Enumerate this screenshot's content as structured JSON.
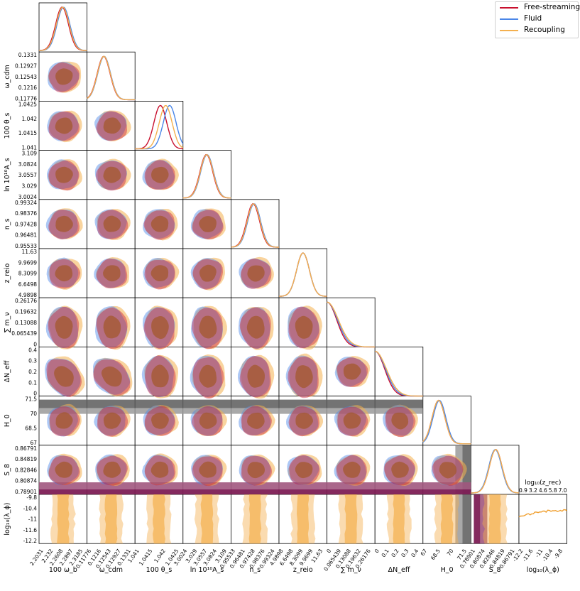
{
  "chart_data": {
    "type": "triangle",
    "legend": [
      {
        "label": "Free-streaming",
        "color": "#c8102e"
      },
      {
        "label": "Fluid",
        "color": "#4a86e8"
      },
      {
        "label": "Recoupling",
        "color": "#f4b04f"
      }
    ],
    "parameters": [
      {
        "id": "omega_b",
        "label": "100 ω_b",
        "ticks": [
          "2.2031",
          "2.232",
          "2.2608",
          "2.2897",
          "2.3185"
        ]
      },
      {
        "id": "omega_cdm",
        "label": "ω_cdm",
        "ticks": [
          "0.11776",
          "0.1216",
          "0.12543",
          "0.12927",
          "0.1331"
        ]
      },
      {
        "id": "theta_s",
        "label": "100 θ_s",
        "ticks": [
          "1.041",
          "1.0415",
          "1.042",
          "1.0425"
        ]
      },
      {
        "id": "ln_As",
        "label": "ln 10¹⁰A_s",
        "ticks": [
          "3.0024",
          "3.029",
          "3.0557",
          "3.0824",
          "3.109"
        ]
      },
      {
        "id": "n_s",
        "label": "n_s",
        "ticks": [
          "0.95533",
          "0.96481",
          "0.97428",
          "0.98376",
          "0.99324"
        ]
      },
      {
        "id": "z_reio",
        "label": "z_reio",
        "ticks": [
          "4.9898",
          "6.6498",
          "8.3099",
          "9.9699",
          "11.63"
        ]
      },
      {
        "id": "sum_mnu",
        "label": "∑ m_ν",
        "ticks": [
          "0",
          "0.065439",
          "0.13088",
          "0.19632",
          "0.26176"
        ]
      },
      {
        "id": "dNeff",
        "label": "ΔN_eff",
        "ticks": [
          "0",
          "0.1",
          "0.2",
          "0.3",
          "0.4"
        ]
      },
      {
        "id": "H0",
        "label": "H_0",
        "ticks": [
          "67",
          "68.5",
          "70",
          "71.5"
        ]
      },
      {
        "id": "S8",
        "label": "S_8",
        "ticks": [
          "0.78901",
          "0.80874",
          "0.82846",
          "0.84819",
          "0.86791"
        ]
      },
      {
        "id": "log10_lambda",
        "label": "log₁₀(λ_ϕ)",
        "ticks": [
          "-12.2",
          "-11.6",
          "-11",
          "-10.4",
          "-9.8"
        ]
      }
    ],
    "extra_axis": {
      "top_label": "log₁₀(z_rec)",
      "top_ticks": [
        "0.9",
        "3.2",
        "4.6",
        "5.8",
        "7.0"
      ],
      "bottom_ticks": [
        "-12.2",
        "-11.6",
        "-11",
        "-10.4",
        "-9.8"
      ],
      "bottom_label": "log₁₀(λ_ϕ)"
    },
    "marginal_peaks": [
      {
        "param": "omega_b",
        "means": [
          2.258,
          2.262,
          2.26
        ]
      },
      {
        "param": "omega_cdm",
        "means": [
          0.1226,
          0.1228,
          0.1227
        ]
      },
      {
        "param": "theta_s",
        "means": [
          1.0418,
          1.04215,
          1.042
        ]
      },
      {
        "param": "ln_As",
        "means": [
          3.054,
          3.056,
          3.055
        ]
      },
      {
        "param": "n_s",
        "means": [
          0.9725,
          0.9735,
          0.973
        ]
      },
      {
        "param": "z_reio",
        "means": [
          8.31,
          8.32,
          8.31
        ]
      },
      {
        "param": "H0",
        "means": [
          68.3,
          68.4,
          68.3
        ]
      },
      {
        "param": "S8",
        "means": [
          0.83,
          0.829,
          0.83
        ]
      }
    ],
    "bands": {
      "H0": {
        "range_1sigma": [
          71.6,
          72.4
        ],
        "range_2sigma": [
          70.8,
          73.2
        ]
      },
      "S8": {
        "range_1sigma": [
          0.776,
          0.796
        ],
        "range_2sigma": [
          0.77,
          0.8
        ]
      }
    }
  }
}
